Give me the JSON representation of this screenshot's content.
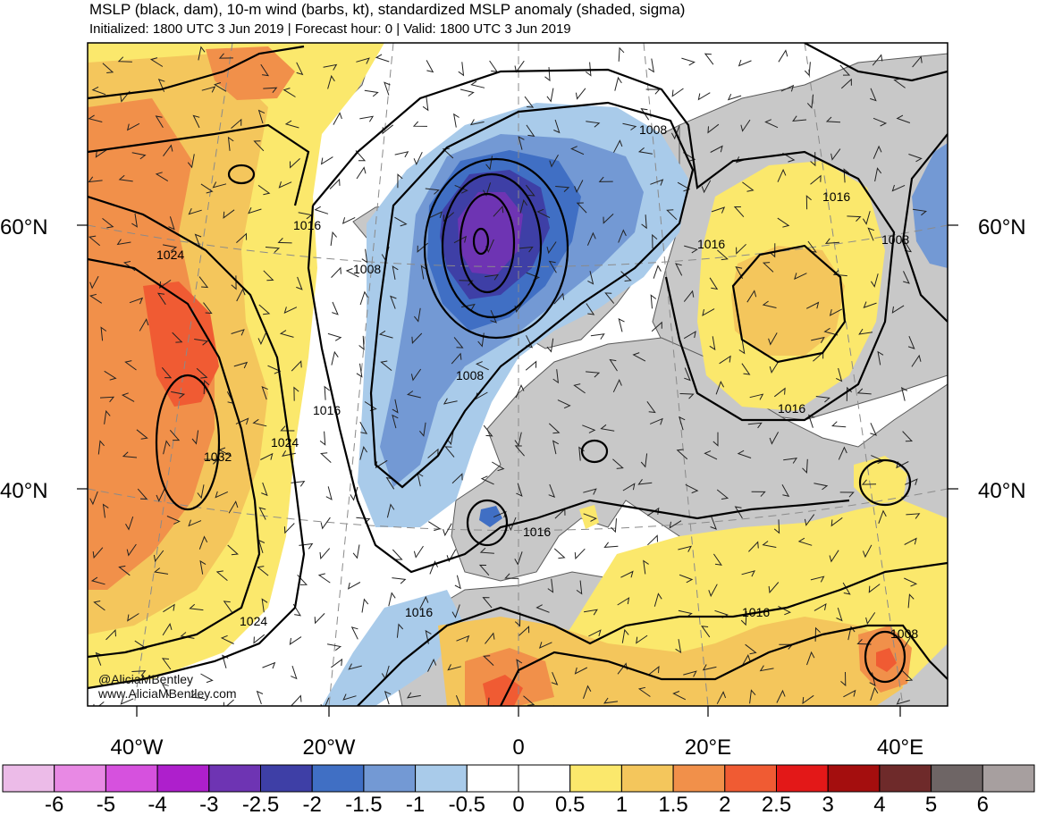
{
  "header": {
    "title": "MSLP (black, dam), 10-m wind (barbs, kt), standardized MSLP anomaly (shaded, sigma)",
    "subtitle": "Initialized: 1800 UTC 3 Jun 2019 | Forecast hour: 0 | Valid: 1800 UTC 3 Jun 2019"
  },
  "map": {
    "region": "North Atlantic / Europe",
    "lat_labels_left": [
      "60°N",
      "40°N"
    ],
    "lat_labels_right": [
      "60°N",
      "40°N"
    ],
    "lon_labels": [
      "40°W",
      "20°W",
      "0",
      "20°E",
      "40°E"
    ],
    "contour_labels": [
      "1008",
      "1016",
      "1024",
      "1016",
      "1008",
      "1008",
      "1032",
      "1024",
      "1016",
      "1016",
      "1016",
      "1024",
      "1016",
      "1016",
      "1016",
      "1008"
    ],
    "colors": {
      "land": "#c8c8c8",
      "ocean": "#ffffff",
      "contour": "#000000",
      "coast": "#555555"
    }
  },
  "credits": {
    "twitter": "@AliciaMBentley",
    "web": "www.AliciaMBentley.com"
  },
  "colorbar": {
    "labels": [
      "-6",
      "-5",
      "-4",
      "-3",
      "-2.5",
      "-2",
      "-1.5",
      "-1",
      "-0.5",
      "0",
      "0.5",
      "1",
      "1.5",
      "2",
      "2.5",
      "3",
      "4",
      "5",
      "6"
    ],
    "colors": [
      "#ecbbe8",
      "#e889e4",
      "#d651de",
      "#ae1fcc",
      "#6e34b3",
      "#3e3fa6",
      "#406fc4",
      "#7399d4",
      "#a9cbea",
      "#ffffff",
      "#ffffff",
      "#fbe86c",
      "#f4c65c",
      "#f1904a",
      "#f05b33",
      "#e31818",
      "#a40e0e",
      "#6e2a2a",
      "#6e6565",
      "#a79f9f"
    ]
  }
}
